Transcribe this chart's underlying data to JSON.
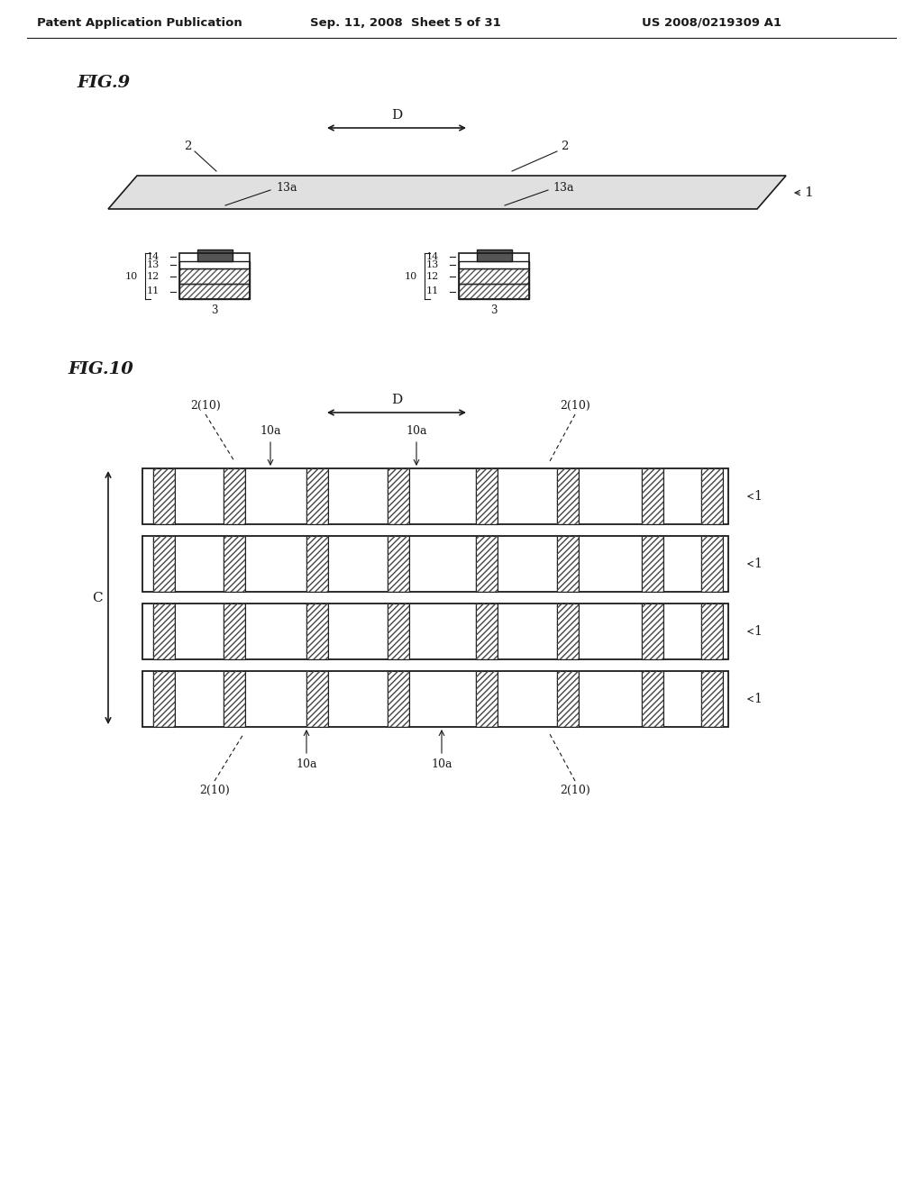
{
  "header_left": "Patent Application Publication",
  "header_mid": "Sep. 11, 2008  Sheet 5 of 31",
  "header_right": "US 2008/0219309 A1",
  "fig9_label": "FIG.9",
  "fig10_label": "FIG.10",
  "bg_color": "#ffffff",
  "line_color": "#1a1a1a",
  "hatch_color": "#333333",
  "light_gray": "#cccccc"
}
